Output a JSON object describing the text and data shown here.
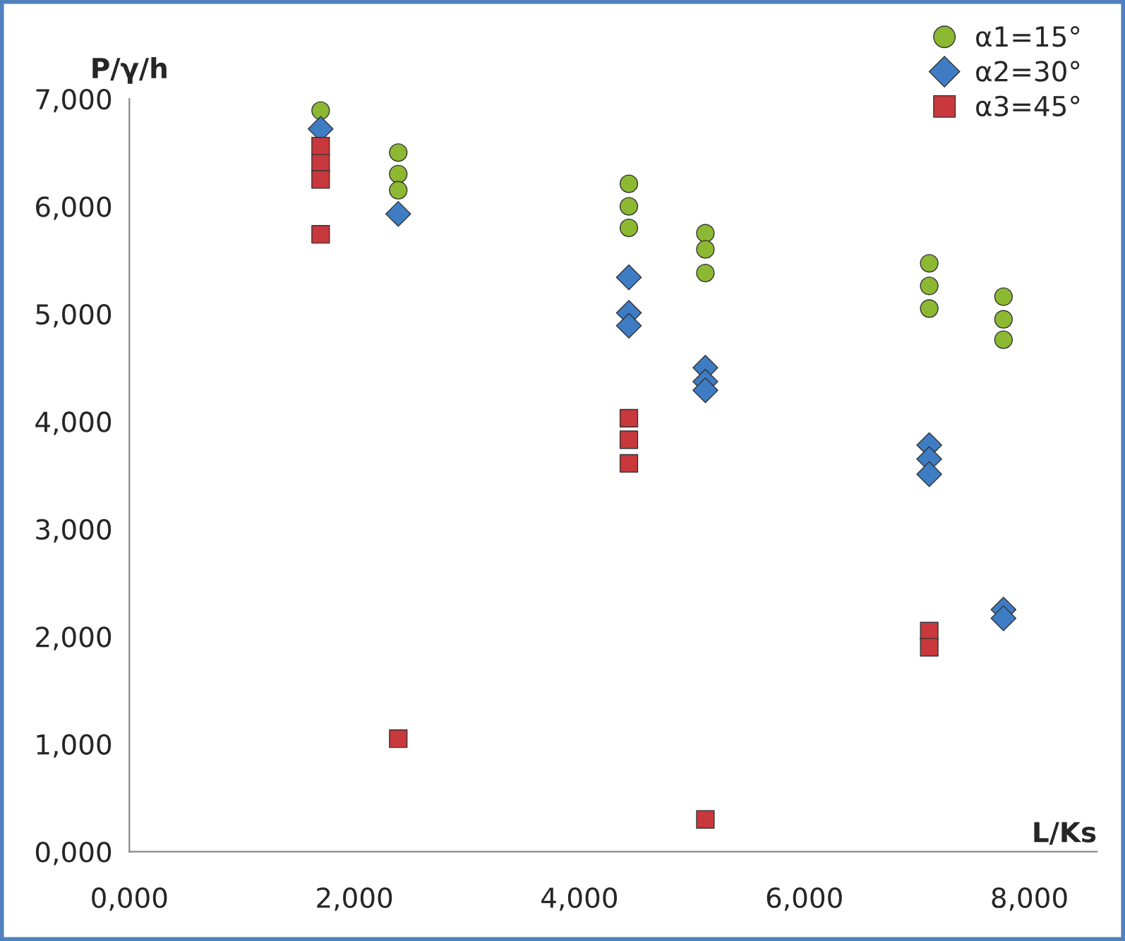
{
  "chart_data": {
    "type": "scatter",
    "xlabel": "L/Ks",
    "ylabel": "P/γ/h",
    "xlim": [
      0,
      8.6
    ],
    "ylim": [
      0,
      7
    ],
    "xticks": [
      {
        "value": 0,
        "label": "0,000"
      },
      {
        "value": 2,
        "label": "2,000"
      },
      {
        "value": 4,
        "label": "4,000"
      },
      {
        "value": 6,
        "label": "6,000"
      },
      {
        "value": 8,
        "label": "8,000"
      }
    ],
    "yticks": [
      {
        "value": 0,
        "label": "0,000"
      },
      {
        "value": 1,
        "label": "1,000"
      },
      {
        "value": 2,
        "label": "2,000"
      },
      {
        "value": 3,
        "label": "3,000"
      },
      {
        "value": 4,
        "label": "4,000"
      },
      {
        "value": 5,
        "label": "5,000"
      },
      {
        "value": 6,
        "label": "6,000"
      },
      {
        "value": 7,
        "label": "7,000"
      }
    ],
    "grid": false,
    "legend": "top right",
    "series": [
      {
        "name": "α1=15°",
        "color": "#8db832",
        "marker": "circle",
        "x": [
          1.7,
          2.39,
          2.39,
          2.39,
          4.44,
          4.44,
          4.44,
          5.12,
          5.12,
          5.12,
          7.11,
          7.11,
          7.11,
          7.77,
          7.77,
          7.77
        ],
        "values": [
          6.89,
          6.5,
          6.3,
          6.15,
          6.21,
          6.0,
          5.8,
          5.75,
          5.6,
          5.38,
          5.47,
          5.26,
          5.05,
          5.16,
          4.95,
          4.76
        ]
      },
      {
        "name": "α2=30°",
        "color": "#3e7cc4",
        "marker": "diamond",
        "x": [
          1.7,
          2.39,
          4.44,
          4.44,
          4.44,
          5.12,
          5.12,
          5.12,
          7.11,
          7.11,
          7.11,
          7.77,
          7.77
        ],
        "values": [
          6.72,
          5.93,
          5.34,
          5.01,
          4.89,
          4.5,
          4.37,
          4.29,
          3.78,
          3.65,
          3.51,
          2.25,
          2.17
        ]
      },
      {
        "name": "α3=45°",
        "color": "#c8383c",
        "marker": "square",
        "x": [
          1.7,
          1.7,
          1.7,
          1.7,
          2.39,
          4.44,
          4.44,
          4.44,
          5.12,
          7.11,
          7.11
        ],
        "values": [
          6.56,
          6.4,
          6.25,
          5.74,
          1.05,
          4.03,
          3.83,
          3.61,
          0.3,
          2.05,
          1.9
        ]
      }
    ]
  }
}
